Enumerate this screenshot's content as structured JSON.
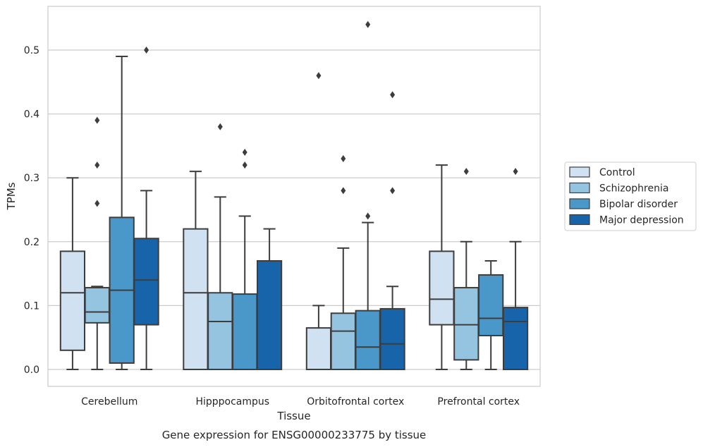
{
  "chart_data": {
    "type": "box",
    "title": "",
    "caption": "Gene expression for ENSG00000233775 by tissue",
    "xlabel": "Tissue",
    "ylabel": "TPMs",
    "ylim": [
      -0.026,
      0.567
    ],
    "yticks": [
      0.0,
      0.1,
      0.2,
      0.3,
      0.4,
      0.5
    ],
    "ytick_labels": [
      "0.0",
      "0.1",
      "0.2",
      "0.3",
      "0.4",
      "0.5"
    ],
    "grid": true,
    "legend_position": "right",
    "categories": [
      "Cerebellum",
      "Hipppocampus",
      "Orbitofrontal cortex",
      "Prefrontal cortex"
    ],
    "series": [
      {
        "name": "Control",
        "color": "#d0e1f2",
        "boxes": [
          {
            "whislo": 0.0,
            "q1": 0.03,
            "med": 0.12,
            "q3": 0.185,
            "whishi": 0.3,
            "fliers": []
          },
          {
            "whislo": 0.0,
            "q1": 0.0,
            "med": 0.12,
            "q3": 0.22,
            "whishi": 0.31,
            "fliers": []
          },
          {
            "whislo": 0.0,
            "q1": 0.0,
            "med": 0.0,
            "q3": 0.065,
            "whishi": 0.1,
            "fliers": [
              0.46
            ]
          },
          {
            "whislo": 0.0,
            "q1": 0.07,
            "med": 0.11,
            "q3": 0.185,
            "whishi": 0.32,
            "fliers": []
          }
        ]
      },
      {
        "name": "Schizophrenia",
        "color": "#94c4df",
        "boxes": [
          {
            "whislo": 0.0,
            "q1": 0.073,
            "med": 0.09,
            "q3": 0.128,
            "whishi": 0.13,
            "fliers": [
              0.26,
              0.32,
              0.39
            ]
          },
          {
            "whislo": 0.0,
            "q1": 0.0,
            "med": 0.075,
            "q3": 0.12,
            "whishi": 0.27,
            "fliers": [
              0.38
            ]
          },
          {
            "whislo": 0.0,
            "q1": 0.0,
            "med": 0.06,
            "q3": 0.088,
            "whishi": 0.19,
            "fliers": [
              0.28,
              0.33
            ]
          },
          {
            "whislo": 0.0,
            "q1": 0.015,
            "med": 0.07,
            "q3": 0.128,
            "whishi": 0.2,
            "fliers": [
              0.31
            ]
          }
        ]
      },
      {
        "name": "Bipolar disorder",
        "color": "#4a98c9",
        "boxes": [
          {
            "whislo": 0.0,
            "q1": 0.01,
            "med": 0.124,
            "q3": 0.238,
            "whishi": 0.49,
            "fliers": []
          },
          {
            "whislo": 0.0,
            "q1": 0.0,
            "med": 0.0,
            "q3": 0.118,
            "whishi": 0.24,
            "fliers": [
              0.32,
              0.34
            ]
          },
          {
            "whislo": 0.0,
            "q1": 0.0,
            "med": 0.035,
            "q3": 0.092,
            "whishi": 0.23,
            "fliers": [
              0.24,
              0.54
            ]
          },
          {
            "whislo": 0.0,
            "q1": 0.053,
            "med": 0.08,
            "q3": 0.148,
            "whishi": 0.17,
            "fliers": []
          }
        ]
      },
      {
        "name": "Major depression",
        "color": "#1764ab",
        "boxes": [
          {
            "whislo": 0.0,
            "q1": 0.07,
            "med": 0.14,
            "q3": 0.205,
            "whishi": 0.28,
            "fliers": [
              0.5
            ]
          },
          {
            "whislo": 0.0,
            "q1": 0.0,
            "med": 0.0,
            "q3": 0.17,
            "whishi": 0.22,
            "fliers": []
          },
          {
            "whislo": 0.0,
            "q1": 0.0,
            "med": 0.04,
            "q3": 0.095,
            "whishi": 0.13,
            "fliers": [
              0.28,
              0.43
            ]
          },
          {
            "whislo": 0.0,
            "q1": 0.0,
            "med": 0.075,
            "q3": 0.097,
            "whishi": 0.2,
            "fliers": [
              0.31
            ]
          }
        ]
      }
    ]
  }
}
